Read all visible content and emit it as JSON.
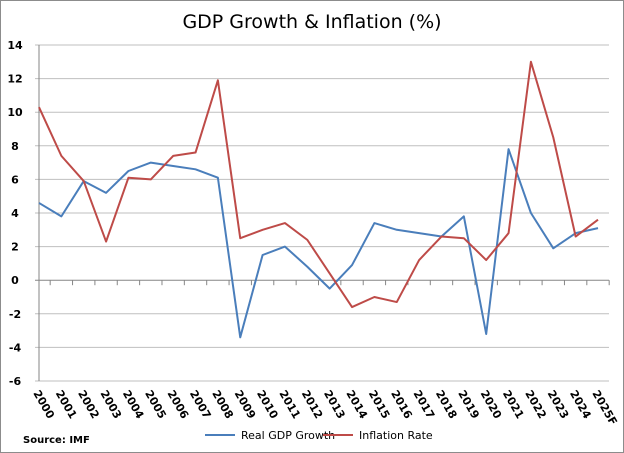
{
  "chart_data": {
    "type": "line",
    "title": "GDP Growth & Inflation (%)",
    "source": "Source: IMF",
    "categories": [
      "2000",
      "2001",
      "2002",
      "2003",
      "2004",
      "2005",
      "2006",
      "2007",
      "2008",
      "2009",
      "2010",
      "2011",
      "2012",
      "2013",
      "2014",
      "2015",
      "2016",
      "2017",
      "2018",
      "2019",
      "2020",
      "2021",
      "2022",
      "2023",
      "2024",
      "2025F"
    ],
    "ylim": [
      -6,
      14
    ],
    "yticks": [
      -6,
      -4,
      -2,
      0,
      2,
      4,
      6,
      8,
      10,
      12,
      14
    ],
    "grid": true,
    "legend": "bottom",
    "series": [
      {
        "name": "Real GDP Growth",
        "color": "#4a7ebb",
        "values": [
          4.6,
          3.8,
          5.9,
          5.2,
          6.5,
          7.0,
          6.8,
          6.6,
          6.1,
          -3.4,
          1.5,
          2.0,
          0.8,
          -0.5,
          0.9,
          3.4,
          3.0,
          2.8,
          2.6,
          3.8,
          -3.2,
          7.8,
          4.0,
          1.9,
          2.8,
          3.1
        ]
      },
      {
        "name": "Inflation Rate",
        "color": "#be4b48",
        "values": [
          10.3,
          7.4,
          5.9,
          2.3,
          6.1,
          6.0,
          7.4,
          7.6,
          11.9,
          2.5,
          3.0,
          3.4,
          2.4,
          0.4,
          -1.6,
          -1.0,
          -1.3,
          1.2,
          2.6,
          2.5,
          1.2,
          2.8,
          13.0,
          8.5,
          2.6,
          3.6
        ]
      }
    ]
  }
}
